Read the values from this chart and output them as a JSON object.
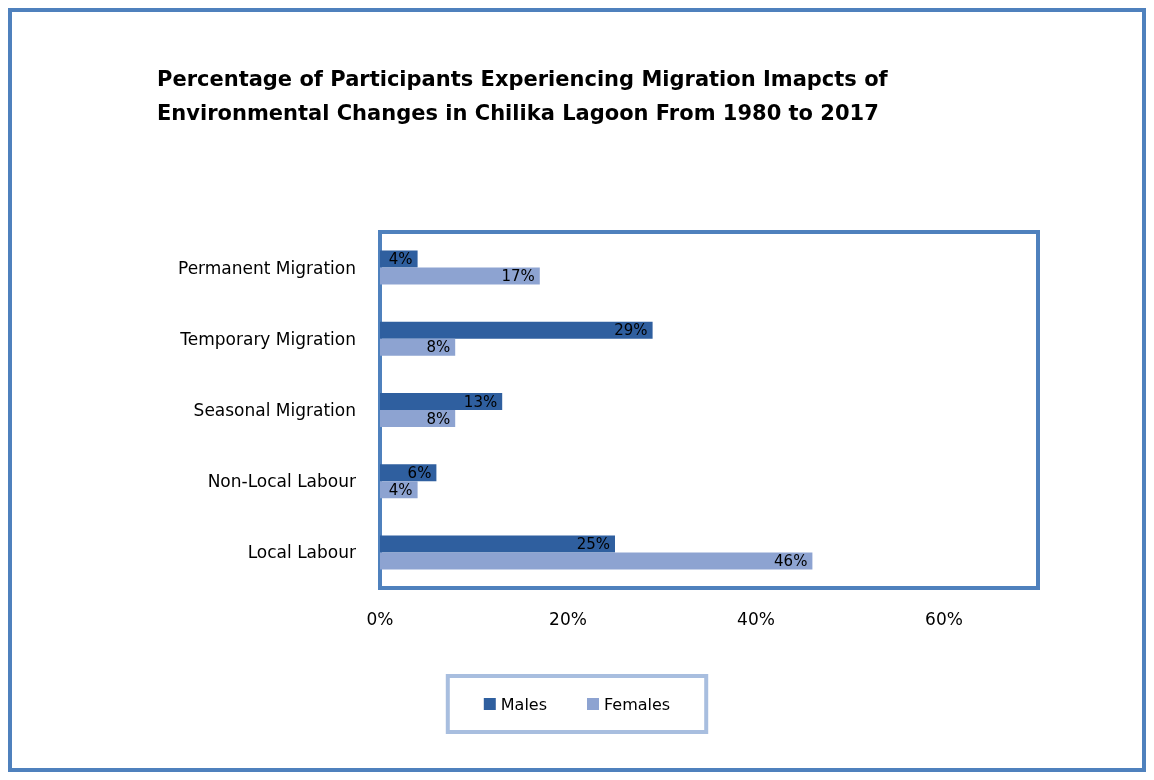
{
  "chart_data": {
    "type": "bar",
    "orientation": "horizontal",
    "title": "Percentage of Participants Experiencing Migration Imapcts of Environmental Changes in Chilika Lagoon From 1980 to 2017",
    "categories": [
      "Permanent Migration",
      "Temporary Migration",
      "Seasonal Migration",
      "Non-Local Labour",
      "Local Labour"
    ],
    "series": [
      {
        "name": "Males",
        "color": "#2f5f9f",
        "values": [
          4,
          29,
          13,
          6,
          25
        ],
        "value_labels": [
          "4%",
          "29%",
          "13%",
          "6%",
          "25%"
        ]
      },
      {
        "name": "Females",
        "color": "#8da3d1",
        "values": [
          17,
          8,
          8,
          4,
          46
        ],
        "value_labels": [
          "17%",
          "8%",
          "8%",
          "4%",
          "46%"
        ]
      }
    ],
    "xlim": [
      0,
      70
    ],
    "xticks": [
      {
        "value": 0,
        "label": "0%"
      },
      {
        "value": 20,
        "label": "20%"
      },
      {
        "value": 40,
        "label": "40%"
      },
      {
        "value": 60,
        "label": "60%"
      }
    ],
    "grid": false,
    "legend": "bottom"
  }
}
